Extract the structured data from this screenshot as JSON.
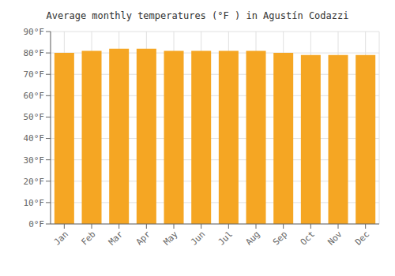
{
  "chart_data": {
    "type": "bar",
    "title": "Average monthly temperatures (°F ) in Agustín Codazzi",
    "categories": [
      "Jan",
      "Feb",
      "Mar",
      "Apr",
      "May",
      "Jun",
      "Jul",
      "Aug",
      "Sep",
      "Oct",
      "Nov",
      "Dec"
    ],
    "values": [
      80,
      81,
      82,
      82,
      81,
      81,
      81,
      81,
      80,
      79,
      79,
      79
    ],
    "color": "#F5A623",
    "ylim": [
      0,
      90
    ],
    "yticks": [
      {
        "value": 0,
        "label": "0°F"
      },
      {
        "value": 10,
        "label": "10°F"
      },
      {
        "value": 20,
        "label": "20°F"
      },
      {
        "value": 30,
        "label": "30°F"
      },
      {
        "value": 40,
        "label": "40°F"
      },
      {
        "value": 50,
        "label": "50°F"
      },
      {
        "value": 60,
        "label": "60°F"
      },
      {
        "value": 70,
        "label": "70°F"
      },
      {
        "value": 80,
        "label": "80°F"
      },
      {
        "value": 90,
        "label": "90°F"
      }
    ],
    "grid": true
  }
}
